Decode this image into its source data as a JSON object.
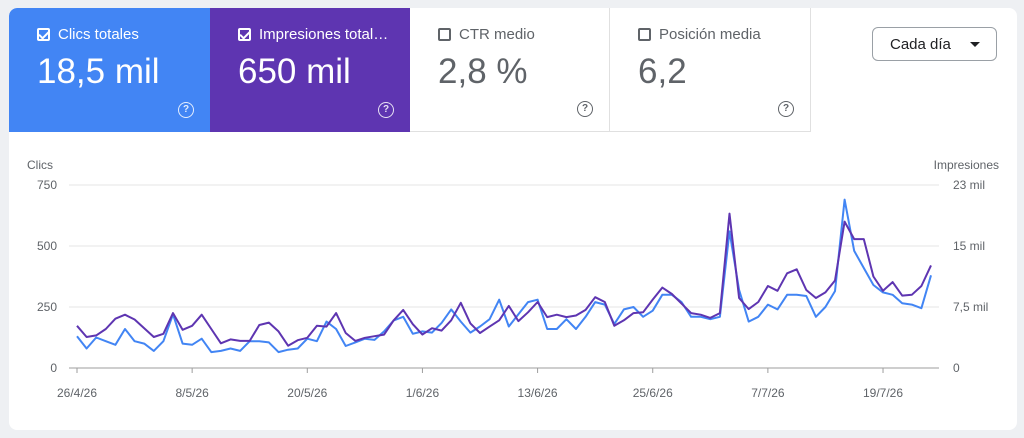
{
  "metrics": [
    {
      "label": "Clics totales",
      "value": "18,5 mil",
      "checked": true,
      "color": "#4285f4"
    },
    {
      "label": "Impresiones total…",
      "value": "650 mil",
      "checked": true,
      "color": "#5e35b1"
    },
    {
      "label": "CTR medio",
      "value": "2,8 %",
      "checked": false
    },
    {
      "label": "Posición media",
      "value": "6,2",
      "checked": false
    }
  ],
  "help_glyph": "?",
  "range_select": {
    "label": "Cada día"
  },
  "chart_data": {
    "type": "line",
    "left_axis": {
      "title": "Clics",
      "ticks": [
        "0",
        "250",
        "500",
        "750"
      ],
      "range": [
        0,
        750
      ]
    },
    "right_axis": {
      "title": "Impresiones",
      "ticks": [
        "0",
        "7,5 mil",
        "15 mil",
        "23 mil"
      ],
      "range": [
        0,
        23000
      ]
    },
    "x_tick_labels": [
      "26/4/26",
      "8/5/26",
      "20/5/26",
      "1/6/26",
      "13/6/26",
      "25/6/26",
      "7/7/26",
      "19/7/26"
    ],
    "grid": true,
    "series": [
      {
        "name": "Clics totales",
        "color": "#4285f4",
        "axis": "left",
        "values": [
          130,
          80,
          125,
          110,
          95,
          160,
          110,
          100,
          70,
          110,
          220,
          100,
          95,
          120,
          65,
          70,
          80,
          70,
          110,
          110,
          105,
          65,
          75,
          80,
          120,
          110,
          190,
          160,
          90,
          105,
          120,
          115,
          150,
          195,
          210,
          140,
          150,
          145,
          185,
          240,
          190,
          145,
          170,
          200,
          280,
          170,
          220,
          270,
          280,
          160,
          160,
          200,
          160,
          210,
          270,
          260,
          180,
          240,
          250,
          210,
          235,
          300,
          300,
          270,
          210,
          210,
          200,
          210,
          560,
          320,
          190,
          210,
          260,
          240,
          300,
          300,
          295,
          210,
          250,
          315,
          690,
          480,
          410,
          340,
          310,
          300,
          265,
          260,
          245,
          380
        ]
      },
      {
        "name": "Impresiones totales",
        "color": "#5e35b1",
        "axis": "right",
        "values": [
          5300,
          3900,
          4100,
          4900,
          6200,
          6700,
          6100,
          5000,
          3900,
          4300,
          6900,
          4800,
          5300,
          6700,
          4900,
          3100,
          3600,
          3400,
          3400,
          5400,
          5700,
          4600,
          2800,
          3500,
          3800,
          5300,
          5200,
          6900,
          4400,
          3400,
          3800,
          4000,
          4200,
          6000,
          7300,
          5500,
          4200,
          5000,
          4700,
          6000,
          8200,
          5600,
          4400,
          5200,
          6000,
          7800,
          5900,
          7000,
          8300,
          6400,
          6700,
          6400,
          6600,
          7300,
          8900,
          8300,
          5300,
          6000,
          6900,
          7000,
          8600,
          10100,
          9300,
          8100,
          6900,
          6700,
          6300,
          6900,
          19400,
          8800,
          7400,
          8300,
          10300,
          9700,
          11900,
          12400,
          9800,
          8800,
          9500,
          11000,
          18400,
          16200,
          16200,
          11500,
          9700,
          10800,
          9100,
          9200,
          10300,
          12900
        ]
      }
    ]
  }
}
